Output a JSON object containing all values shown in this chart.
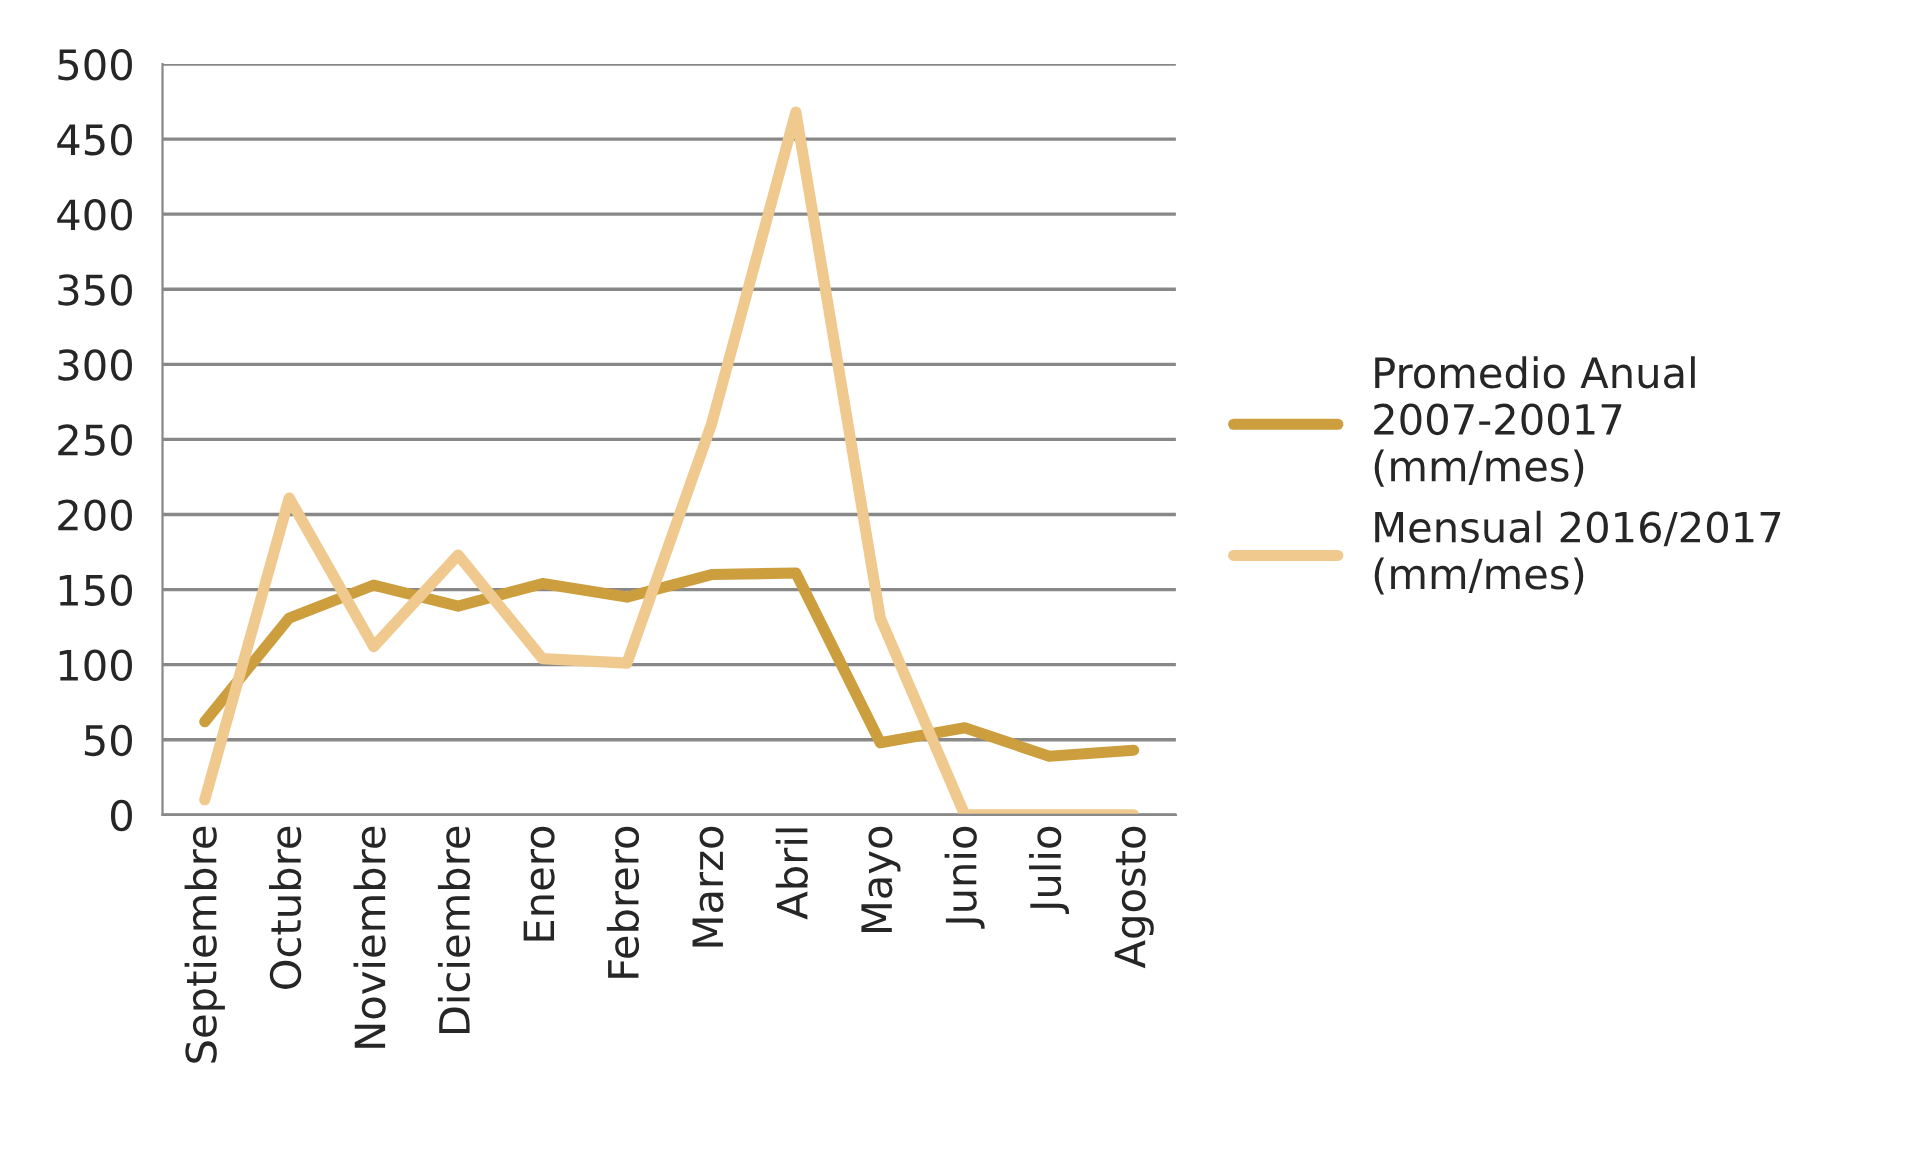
{
  "chart_data": {
    "type": "line",
    "categories": [
      "Septiembre",
      "Octubre",
      "Noviembre",
      "Diciembre",
      "Enero",
      "Febrero",
      "Marzo",
      "Abril",
      "Mayo",
      "Junio",
      "Julio",
      "Agosto"
    ],
    "series": [
      {
        "name": "Promedio Anual\n2007-20017\n(mm/mes)",
        "color": "#cc9e3e",
        "values": [
          62,
          131,
          153,
          139,
          154,
          145,
          160,
          161,
          48,
          58,
          39,
          43
        ]
      },
      {
        "name": "Mensual 2016/2017\n(mm/mes)",
        "color": "#efc98e",
        "values": [
          10,
          211,
          112,
          173,
          104,
          101,
          260,
          468,
          131,
          0,
          0,
          0
        ]
      }
    ],
    "ylim": [
      0,
      500
    ],
    "yticks": [
      0,
      50,
      100,
      150,
      200,
      250,
      300,
      350,
      400,
      450,
      500
    ],
    "grid": "y",
    "legend": "right",
    "marker": "none",
    "line_style": "solid"
  }
}
